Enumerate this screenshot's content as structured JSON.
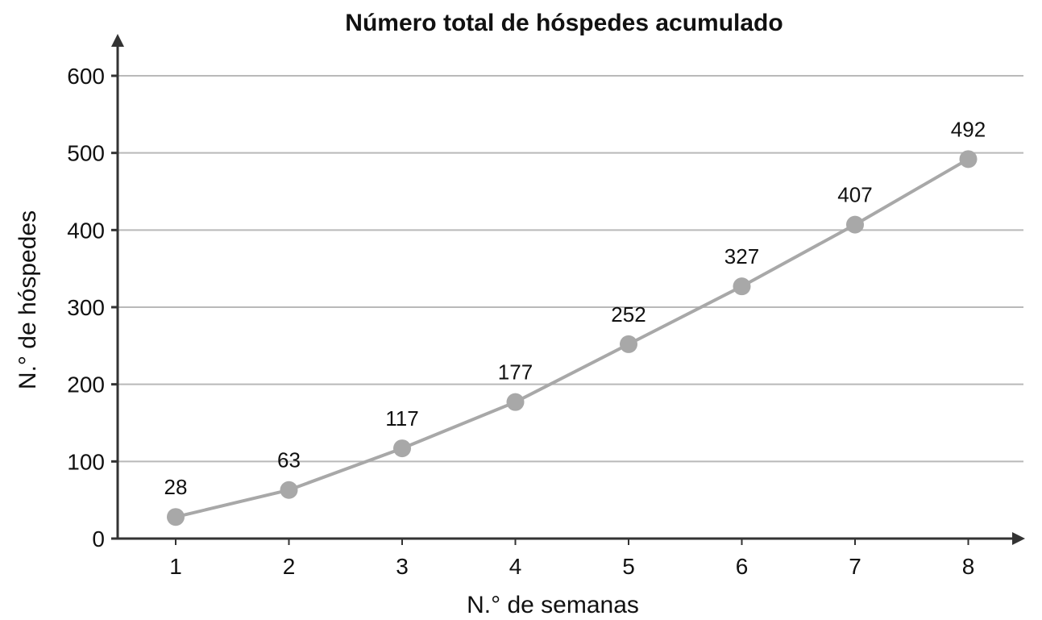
{
  "chart_data": {
    "type": "line",
    "title": "Número total de hóspedes acumulado",
    "xlabel": "N.° de semanas",
    "ylabel": "N.° de hóspedes",
    "x": [
      1,
      2,
      3,
      4,
      5,
      6,
      7,
      8
    ],
    "y": [
      28,
      63,
      117,
      177,
      252,
      327,
      407,
      492
    ],
    "data_labels": [
      "28",
      "63",
      "117",
      "177",
      "252",
      "327",
      "407",
      "492"
    ],
    "xticks": [
      "1",
      "2",
      "3",
      "4",
      "5",
      "6",
      "7",
      "8"
    ],
    "yticks": [
      0,
      100,
      200,
      300,
      400,
      500,
      600
    ],
    "ylim": [
      0,
      600
    ],
    "grid": true,
    "colors": {
      "series": "#a8a8a8",
      "grid": "#b9b9b9",
      "axis": "#333333"
    }
  }
}
